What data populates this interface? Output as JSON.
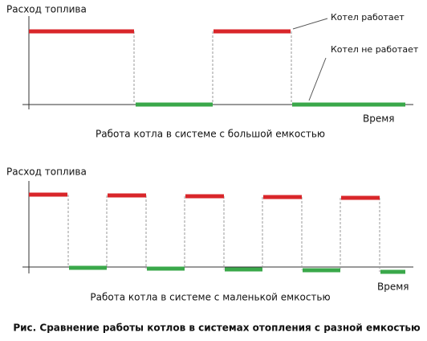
{
  "panels": [
    {
      "y_label": "Расход топлива",
      "x_label": "Время",
      "caption": "Работа котла в системе с большой емкостью",
      "annotations": [
        "Котел работает",
        "Котел не работает"
      ]
    },
    {
      "y_label": "Расход топлива",
      "x_label": "Время",
      "caption": "Работа котла в системе с маленькой емкостью"
    }
  ],
  "figure_caption": "Рис. Сравнение работы котлов в системах отопления с разной емкостью"
}
